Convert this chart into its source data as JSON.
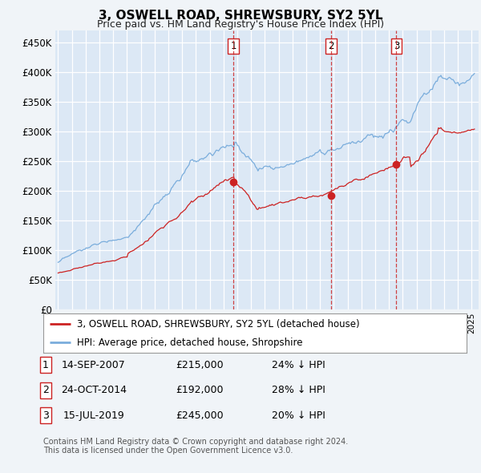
{
  "title": "3, OSWELL ROAD, SHREWSBURY, SY2 5YL",
  "subtitle": "Price paid vs. HM Land Registry's House Price Index (HPI)",
  "background_color": "#f0f4f8",
  "plot_bg_color": "#dce8f5",
  "grid_color": "#ffffff",
  "ylim": [
    0,
    470000
  ],
  "yticks": [
    0,
    50000,
    100000,
    150000,
    200000,
    250000,
    300000,
    350000,
    400000,
    450000
  ],
  "legend_label_red": "3, OSWELL ROAD, SHREWSBURY, SY2 5YL (detached house)",
  "legend_label_blue": "HPI: Average price, detached house, Shropshire",
  "sale_markers": [
    {
      "num": 1,
      "date": "14-SEP-2007",
      "price": "£215,000",
      "pct": "24% ↓ HPI",
      "x_year": 2007.71,
      "y_val": 215000
    },
    {
      "num": 2,
      "date": "24-OCT-2014",
      "price": "£192,000",
      "pct": "28% ↓ HPI",
      "x_year": 2014.81,
      "y_val": 192000
    },
    {
      "num": 3,
      "date": "15-JUL-2019",
      "price": "£245,000",
      "pct": "20% ↓ HPI",
      "x_year": 2019.54,
      "y_val": 245000
    }
  ],
  "footer": "Contains HM Land Registry data © Crown copyright and database right 2024.\nThis data is licensed under the Open Government Licence v3.0.",
  "hpi_color": "#7aaddc",
  "price_color": "#cc2222",
  "marker_box_color": "#cc2222",
  "xmin": 1994.8,
  "xmax": 2025.5
}
